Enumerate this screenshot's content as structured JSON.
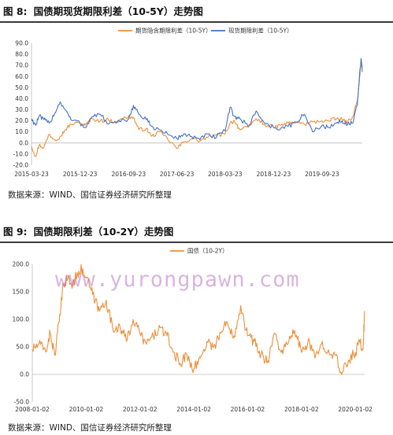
{
  "figures": [
    {
      "label": "图 8:",
      "title": "国债期现货期限利差（10-5Y）走势图",
      "source": "数据来源：WIND、国信证券经济研究所整理"
    },
    {
      "label": "图 9:",
      "title": "国债期限利差（10-2Y）走势图",
      "source": "数据来源：WIND、国信证券经济研究所整理"
    }
  ],
  "watermark": "www.yurongpawn.com",
  "colors": {
    "orange": "#ED8F3A",
    "blue": "#4472C4",
    "rule": "#3a3a3a"
  },
  "chart_data": [
    {
      "type": "line",
      "x_tick_labels": [
        "2015-03-23",
        "2015-12-23",
        "2016-09-23",
        "2017-06-23",
        "2018-03-23",
        "2018-12-23",
        "2019-09-23"
      ],
      "x_range": [
        "2015-03-23",
        "2020-05-08"
      ],
      "ylim": [
        -20,
        90
      ],
      "yticks": [
        "-20.0",
        "-10.0",
        "0.0",
        "10.0",
        "20.0",
        "30.0",
        "40.0",
        "50.0",
        "60.0",
        "70.0",
        "80.0",
        "90.0"
      ],
      "legend_position": "top-center",
      "grid": false,
      "series": [
        {
          "name": "期货隐含期限利差（10-5Y）",
          "color": "#ED8F3A",
          "x": [
            "2015-03-23",
            "2015-04-15",
            "2015-05-05",
            "2015-06-01",
            "2015-07-01",
            "2015-08-01",
            "2015-09-01",
            "2015-10-01",
            "2015-11-01",
            "2015-12-23",
            "2016-01-20",
            "2016-03-01",
            "2016-04-15",
            "2016-06-01",
            "2016-07-15",
            "2016-09-23",
            "2016-10-20",
            "2016-11-20",
            "2017-01-01",
            "2017-02-01",
            "2017-03-15",
            "2017-05-01",
            "2017-06-23",
            "2017-08-01",
            "2017-09-15",
            "2017-11-01",
            "2017-12-15",
            "2018-02-01",
            "2018-03-23",
            "2018-04-20",
            "2018-05-15",
            "2018-06-15",
            "2018-08-01",
            "2018-09-15",
            "2018-11-01",
            "2018-12-23",
            "2019-02-01",
            "2019-03-15",
            "2019-05-01",
            "2019-06-15",
            "2019-08-01",
            "2019-09-23",
            "2019-11-01",
            "2019-12-15",
            "2020-01-15",
            "2020-02-15",
            "2020-03-15",
            "2020-04-10",
            "2020-04-22",
            "2020-05-01",
            "2020-05-08"
          ],
          "y": [
            -3,
            -12,
            -2,
            -4,
            8,
            3,
            6,
            12,
            17,
            18,
            16,
            22,
            20,
            21,
            19,
            24,
            23,
            12,
            13,
            6,
            10,
            4,
            -5,
            1,
            4,
            2,
            5,
            7,
            8,
            18,
            20,
            12,
            14,
            22,
            17,
            14,
            16,
            18,
            19,
            17,
            19,
            20,
            20,
            22,
            21,
            19,
            24,
            38,
            56,
            74,
            68
          ]
        },
        {
          "name": "现货期限利差（10-5Y）",
          "color": "#4472C4",
          "x": [
            "2015-03-23",
            "2015-04-15",
            "2015-05-05",
            "2015-06-01",
            "2015-07-01",
            "2015-08-01",
            "2015-09-01",
            "2015-10-01",
            "2015-11-01",
            "2015-12-23",
            "2016-01-20",
            "2016-03-01",
            "2016-04-15",
            "2016-06-01",
            "2016-07-15",
            "2016-09-23",
            "2016-10-20",
            "2016-11-20",
            "2017-01-01",
            "2017-02-01",
            "2017-03-15",
            "2017-05-01",
            "2017-06-23",
            "2017-08-01",
            "2017-09-15",
            "2017-11-01",
            "2017-12-15",
            "2018-02-01",
            "2018-03-23",
            "2018-04-20",
            "2018-05-15",
            "2018-06-15",
            "2018-08-01",
            "2018-09-15",
            "2018-11-01",
            "2018-12-23",
            "2019-02-01",
            "2019-03-15",
            "2019-05-01",
            "2019-06-15",
            "2019-08-01",
            "2019-09-23",
            "2019-11-01",
            "2019-12-15",
            "2020-01-15",
            "2020-02-15",
            "2020-03-15",
            "2020-04-10",
            "2020-04-22",
            "2020-05-01",
            "2020-05-08"
          ],
          "y": [
            22,
            16,
            24,
            21,
            18,
            27,
            37,
            30,
            21,
            18,
            14,
            24,
            26,
            17,
            18,
            22,
            34,
            26,
            21,
            15,
            12,
            8,
            4,
            8,
            6,
            3,
            8,
            5,
            11,
            32,
            24,
            22,
            15,
            29,
            18,
            14,
            13,
            15,
            19,
            26,
            10,
            16,
            14,
            18,
            20,
            17,
            18,
            34,
            60,
            76,
            64
          ]
        }
      ]
    },
    {
      "type": "line",
      "x_tick_labels": [
        "2008-01-02",
        "2010-01-02",
        "2012-01-02",
        "2014-01-02",
        "2016-01-02",
        "2018-01-02",
        "2020-01-02"
      ],
      "x_range": [
        "2008-01-02",
        "2020-05-08"
      ],
      "ylim": [
        -50,
        200
      ],
      "yticks": [
        "-50.0",
        "0.0",
        "50.0",
        "100.0",
        "150.0",
        "200.0"
      ],
      "legend_position": "top-center",
      "grid": false,
      "series": [
        {
          "name": "国债（10-2Y）",
          "color": "#ED8F3A",
          "x": [
            "2008-01-02",
            "2008-04-01",
            "2008-07-01",
            "2008-09-01",
            "2008-11-01",
            "2009-01-01",
            "2009-03-01",
            "2009-05-01",
            "2009-07-01",
            "2009-09-01",
            "2009-11-01",
            "2010-01-02",
            "2010-04-01",
            "2010-07-01",
            "2010-10-01",
            "2011-01-01",
            "2011-04-01",
            "2011-07-01",
            "2011-10-01",
            "2012-01-02",
            "2012-04-01",
            "2012-07-01",
            "2012-10-01",
            "2013-01-01",
            "2013-04-01",
            "2013-07-01",
            "2013-10-01",
            "2014-01-02",
            "2014-04-01",
            "2014-07-01",
            "2014-10-01",
            "2015-01-01",
            "2015-04-01",
            "2015-07-01",
            "2015-10-01",
            "2016-01-02",
            "2016-04-01",
            "2016-07-01",
            "2016-10-01",
            "2017-01-01",
            "2017-04-01",
            "2017-07-01",
            "2017-10-01",
            "2018-01-02",
            "2018-04-01",
            "2018-07-01",
            "2018-10-01",
            "2019-01-01",
            "2019-04-01",
            "2019-07-01",
            "2019-10-01",
            "2020-01-02",
            "2020-03-01",
            "2020-04-15",
            "2020-05-08"
          ],
          "y": [
            45,
            55,
            42,
            75,
            35,
            95,
            165,
            175,
            160,
            185,
            190,
            175,
            145,
            115,
            135,
            80,
            90,
            60,
            100,
            75,
            55,
            70,
            85,
            70,
            40,
            20,
            35,
            10,
            30,
            60,
            50,
            75,
            95,
            70,
            125,
            70,
            60,
            35,
            25,
            75,
            40,
            55,
            80,
            40,
            60,
            30,
            55,
            45,
            35,
            0,
            25,
            40,
            60,
            45,
            115
          ]
        }
      ]
    }
  ]
}
